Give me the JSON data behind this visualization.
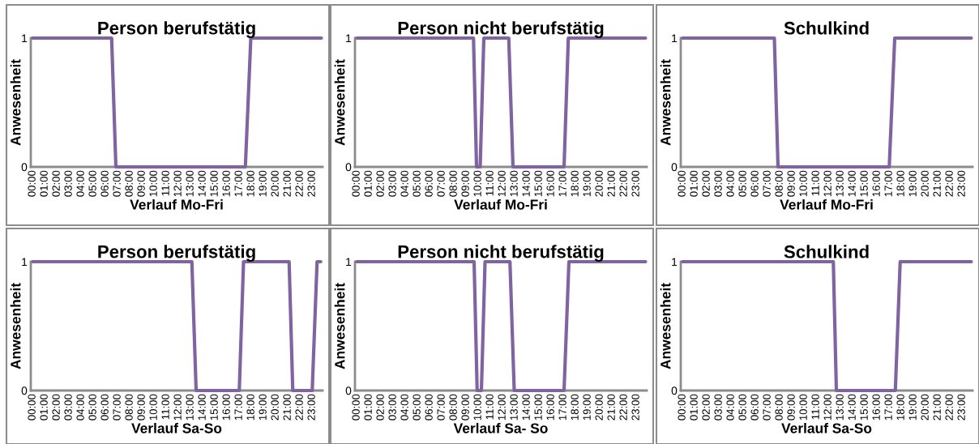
{
  "chart_data": [
    {
      "type": "line",
      "title": "Person berufstätig",
      "xlabel": "Verlauf Mo-Fri",
      "ylabel": "Anwesenheit",
      "xlim": [
        -0.15,
        23.85
      ],
      "ylim": [
        0,
        1
      ],
      "yticks": [
        0,
        1
      ],
      "xticks": [
        {
          "value": 0,
          "label": "00:00"
        },
        {
          "value": 1,
          "label": "01:00"
        },
        {
          "value": 2,
          "label": "02:00"
        },
        {
          "value": 3,
          "label": "03:00"
        },
        {
          "value": 4,
          "label": "04:00"
        },
        {
          "value": 5,
          "label": "05:00"
        },
        {
          "value": 6,
          "label": "06:00"
        },
        {
          "value": 7,
          "label": "07:00"
        },
        {
          "value": 8,
          "label": "08:00"
        },
        {
          "value": 9,
          "label": "09:00"
        },
        {
          "value": 10,
          "label": "10:00"
        },
        {
          "value": 11,
          "label": "11:00"
        },
        {
          "value": 12,
          "label": "12:00"
        },
        {
          "value": 13,
          "label": "13:00"
        },
        {
          "value": 14,
          "label": "14:00"
        },
        {
          "value": 15,
          "label": "15:00"
        },
        {
          "value": 16,
          "label": "16:00"
        },
        {
          "value": 17,
          "label": "17:00"
        },
        {
          "value": 18,
          "label": "18:00"
        },
        {
          "value": 19,
          "label": "19:00"
        },
        {
          "value": 20,
          "label": "20:00"
        },
        {
          "value": 21,
          "label": "21:00"
        },
        {
          "value": 22,
          "label": "22:00"
        },
        {
          "value": 23,
          "label": "23:00"
        }
      ],
      "grid": false,
      "x": [
        0,
        6.5,
        6.85,
        17.5,
        17.95,
        23.75
      ],
      "series": [
        {
          "color": "#8064a2",
          "values": [
            1,
            1,
            0,
            0,
            1,
            1
          ]
        }
      ]
    },
    {
      "type": "line",
      "title": "Person nicht berufstätig",
      "xlabel": "Verlauf Mo-Fri",
      "ylabel": "Anwesenheit",
      "xlim": [
        -0.15,
        23.85
      ],
      "ylim": [
        0,
        1
      ],
      "yticks": [
        0,
        1
      ],
      "xticks": [
        {
          "value": 0,
          "label": "00:00"
        },
        {
          "value": 1,
          "label": "01:00"
        },
        {
          "value": 2,
          "label": "02:00"
        },
        {
          "value": 3,
          "label": "03:00"
        },
        {
          "value": 4,
          "label": "04:00"
        },
        {
          "value": 5,
          "label": "05:00"
        },
        {
          "value": 6,
          "label": "06:00"
        },
        {
          "value": 7,
          "label": "07:00"
        },
        {
          "value": 8,
          "label": "08:00"
        },
        {
          "value": 9,
          "label": "09:00"
        },
        {
          "value": 10,
          "label": "10:00"
        },
        {
          "value": 11,
          "label": "11:00"
        },
        {
          "value": 12,
          "label": "12:00"
        },
        {
          "value": 13,
          "label": "13:00"
        },
        {
          "value": 14,
          "label": "14:00"
        },
        {
          "value": 15,
          "label": "15:00"
        },
        {
          "value": 16,
          "label": "16:00"
        },
        {
          "value": 17,
          "label": "17:00"
        },
        {
          "value": 18,
          "label": "18:00"
        },
        {
          "value": 19,
          "label": "19:00"
        },
        {
          "value": 20,
          "label": "20:00"
        },
        {
          "value": 21,
          "label": "21:00"
        },
        {
          "value": 22,
          "label": "22:00"
        },
        {
          "value": 23,
          "label": "23:00"
        }
      ],
      "grid": false,
      "x": [
        0,
        9.6,
        9.85,
        10.15,
        10.45,
        12.5,
        12.85,
        17.05,
        17.4,
        23.75
      ],
      "series": [
        {
          "color": "#8064a2",
          "values": [
            1,
            1,
            0,
            0,
            1,
            1,
            0,
            0,
            1,
            1
          ]
        }
      ]
    },
    {
      "type": "line",
      "title": "Schulkind",
      "xlabel": "Verlauf Mo-Fri",
      "ylabel": "Anwesenheit",
      "xlim": [
        -0.15,
        23.85
      ],
      "ylim": [
        0,
        1
      ],
      "yticks": [
        0,
        1
      ],
      "xticks": [
        {
          "value": 0,
          "label": "00:00"
        },
        {
          "value": 1,
          "label": "01:00"
        },
        {
          "value": 2,
          "label": "02:00"
        },
        {
          "value": 3,
          "label": "03:00"
        },
        {
          "value": 4,
          "label": "04:00"
        },
        {
          "value": 5,
          "label": "05:00"
        },
        {
          "value": 6,
          "label": "06:00"
        },
        {
          "value": 7,
          "label": "07:00"
        },
        {
          "value": 8,
          "label": "08:00"
        },
        {
          "value": 9,
          "label": "09:00"
        },
        {
          "value": 10,
          "label": "10:00"
        },
        {
          "value": 11,
          "label": "11:00"
        },
        {
          "value": 12,
          "label": "12:00"
        },
        {
          "value": 13,
          "label": "13:00"
        },
        {
          "value": 14,
          "label": "14:00"
        },
        {
          "value": 15,
          "label": "15:00"
        },
        {
          "value": 16,
          "label": "16:00"
        },
        {
          "value": 17,
          "label": "17:00"
        },
        {
          "value": 18,
          "label": "18:00"
        },
        {
          "value": 19,
          "label": "19:00"
        },
        {
          "value": 20,
          "label": "20:00"
        },
        {
          "value": 21,
          "label": "21:00"
        },
        {
          "value": 22,
          "label": "22:00"
        },
        {
          "value": 23,
          "label": "23:00"
        }
      ],
      "grid": false,
      "x": [
        0,
        7.55,
        7.85,
        17.0,
        17.45,
        23.75
      ],
      "series": [
        {
          "color": "#8064a2",
          "values": [
            1,
            1,
            0,
            0,
            1,
            1
          ]
        }
      ]
    },
    {
      "type": "line",
      "title": "Person berufstätig",
      "xlabel": "Verlauf Sa-So",
      "ylabel": "Anwesenheit",
      "xlim": [
        -0.15,
        23.85
      ],
      "ylim": [
        0,
        1
      ],
      "yticks": [
        0,
        1
      ],
      "xticks": [
        {
          "value": 0,
          "label": "00:00"
        },
        {
          "value": 1,
          "label": "01:00"
        },
        {
          "value": 2,
          "label": "02:00"
        },
        {
          "value": 3,
          "label": "03:00"
        },
        {
          "value": 4,
          "label": "04:00"
        },
        {
          "value": 5,
          "label": "05:00"
        },
        {
          "value": 6,
          "label": "06:00"
        },
        {
          "value": 7,
          "label": "07:00"
        },
        {
          "value": 8,
          "label": "08:00"
        },
        {
          "value": 9,
          "label": "09:00"
        },
        {
          "value": 10,
          "label": "10:00"
        },
        {
          "value": 11,
          "label": "11:00"
        },
        {
          "value": 12,
          "label": "12:00"
        },
        {
          "value": 13,
          "label": "13:00"
        },
        {
          "value": 14,
          "label": "14:00"
        },
        {
          "value": 15,
          "label": "15:00"
        },
        {
          "value": 16,
          "label": "16:00"
        },
        {
          "value": 17,
          "label": "17:00"
        },
        {
          "value": 18,
          "label": "18:00"
        },
        {
          "value": 19,
          "label": "19:00"
        },
        {
          "value": 20,
          "label": "20:00"
        },
        {
          "value": 21,
          "label": "21:00"
        },
        {
          "value": 22,
          "label": "22:00"
        },
        {
          "value": 23,
          "label": "23:00"
        }
      ],
      "grid": false,
      "x": [
        0,
        13.1,
        13.45,
        17.0,
        17.35,
        21.1,
        21.4,
        23.0,
        23.4,
        23.7
      ],
      "series": [
        {
          "color": "#8064a2",
          "values": [
            1,
            1,
            0,
            0,
            1,
            1,
            0,
            0,
            1,
            1
          ]
        }
      ]
    },
    {
      "type": "line",
      "title": "Person nicht berufstätig",
      "xlabel": "Verlauf Sa- So",
      "ylabel": "Anwesenheit",
      "xlim": [
        -0.15,
        23.85
      ],
      "ylim": [
        0,
        1
      ],
      "yticks": [
        0,
        1
      ],
      "xticks": [
        {
          "value": 0,
          "label": "00:00"
        },
        {
          "value": 1,
          "label": "01:00"
        },
        {
          "value": 2,
          "label": "02:00"
        },
        {
          "value": 3,
          "label": "03:00"
        },
        {
          "value": 4,
          "label": "04:00"
        },
        {
          "value": 5,
          "label": "05:00"
        },
        {
          "value": 6,
          "label": "06:00"
        },
        {
          "value": 7,
          "label": "07:00"
        },
        {
          "value": 8,
          "label": "08:00"
        },
        {
          "value": 9,
          "label": "09:00"
        },
        {
          "value": 10,
          "label": "10:00"
        },
        {
          "value": 11,
          "label": "11:00"
        },
        {
          "value": 12,
          "label": "12:00"
        },
        {
          "value": 13,
          "label": "13:00"
        },
        {
          "value": 14,
          "label": "14:00"
        },
        {
          "value": 15,
          "label": "15:00"
        },
        {
          "value": 16,
          "label": "16:00"
        },
        {
          "value": 17,
          "label": "17:00"
        },
        {
          "value": 18,
          "label": "18:00"
        },
        {
          "value": 19,
          "label": "19:00"
        },
        {
          "value": 20,
          "label": "20:00"
        },
        {
          "value": 21,
          "label": "21:00"
        },
        {
          "value": 22,
          "label": "22:00"
        },
        {
          "value": 23,
          "label": "23:00"
        }
      ],
      "grid": false,
      "x": [
        0,
        9.65,
        9.9,
        10.25,
        10.55,
        12.6,
        12.95,
        17.05,
        17.45,
        23.75
      ],
      "series": [
        {
          "color": "#8064a2",
          "values": [
            1,
            1,
            0,
            0,
            1,
            1,
            0,
            0,
            1,
            1
          ]
        }
      ]
    },
    {
      "type": "line",
      "title": "Schulkind",
      "xlabel": "Verlauf Sa-So",
      "ylabel": "Anwesenheit",
      "xlim": [
        -0.15,
        23.85
      ],
      "ylim": [
        0,
        1
      ],
      "yticks": [
        0,
        1
      ],
      "xticks": [
        {
          "value": 0,
          "label": "00:00"
        },
        {
          "value": 1,
          "label": "01:00"
        },
        {
          "value": 2,
          "label": "02:00"
        },
        {
          "value": 3,
          "label": "03:00"
        },
        {
          "value": 4,
          "label": "04:00"
        },
        {
          "value": 5,
          "label": "05:00"
        },
        {
          "value": 6,
          "label": "06:00"
        },
        {
          "value": 7,
          "label": "07:00"
        },
        {
          "value": 8,
          "label": "08:00"
        },
        {
          "value": 9,
          "label": "09:00"
        },
        {
          "value": 10,
          "label": "10:00"
        },
        {
          "value": 11,
          "label": "11:00"
        },
        {
          "value": 12,
          "label": "12:00"
        },
        {
          "value": 13,
          "label": "13:00"
        },
        {
          "value": 14,
          "label": "14:00"
        },
        {
          "value": 15,
          "label": "15:00"
        },
        {
          "value": 16,
          "label": "16:00"
        },
        {
          "value": 17,
          "label": "17:00"
        },
        {
          "value": 18,
          "label": "18:00"
        },
        {
          "value": 19,
          "label": "19:00"
        },
        {
          "value": 20,
          "label": "20:00"
        },
        {
          "value": 21,
          "label": "21:00"
        },
        {
          "value": 22,
          "label": "22:00"
        },
        {
          "value": 23,
          "label": "23:00"
        }
      ],
      "grid": false,
      "x": [
        0,
        12.4,
        12.65,
        17.5,
        17.9,
        23.75
      ],
      "series": [
        {
          "color": "#8064a2",
          "values": [
            1,
            1,
            0,
            0,
            1,
            1
          ]
        }
      ]
    }
  ]
}
